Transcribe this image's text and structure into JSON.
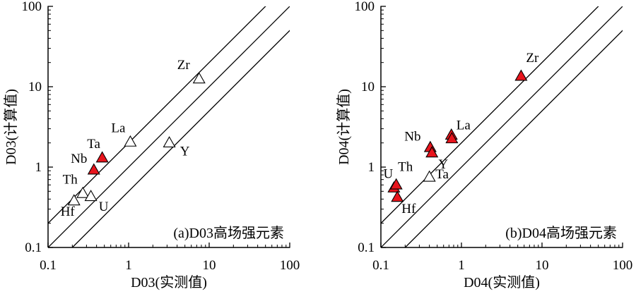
{
  "chart_data": [
    {
      "type": "scatter",
      "title": "(a)D03高场强元素",
      "xlabel": "D03(实测值)",
      "ylabel": "D03(计算值)",
      "xlim": [
        0.1,
        100
      ],
      "ylim": [
        0.1,
        100
      ],
      "xscale": "log",
      "yscale": "log",
      "tick_labels": [
        "0.1",
        "1",
        "10",
        "100"
      ],
      "reference_lines": [
        {
          "description": "y = 2x"
        },
        {
          "description": "y = x"
        },
        {
          "description": "y = 0.5x"
        }
      ],
      "points": [
        {
          "label": "Zr",
          "x": 7.5,
          "y": 12.5,
          "marker": "open",
          "label_dx": -22,
          "label_dy": -14
        },
        {
          "label": "La",
          "x": 1.05,
          "y": 2.05,
          "marker": "open",
          "label_dx": -17,
          "label_dy": -14
        },
        {
          "label": "Y",
          "x": 3.2,
          "y": 2.0,
          "marker": "open",
          "label_dx": 22,
          "label_dy": 18
        },
        {
          "label": "Ta",
          "x": 0.47,
          "y": 1.3,
          "marker": "filled",
          "label_dx": -12,
          "label_dy": -14
        },
        {
          "label": "Nb",
          "x": 0.37,
          "y": 0.92,
          "marker": "filled",
          "label_dx": -21,
          "label_dy": -10
        },
        {
          "label": "Th",
          "x": 0.27,
          "y": 0.47,
          "marker": "open",
          "label_dx": -18,
          "label_dy": -14
        },
        {
          "label": "U",
          "x": 0.34,
          "y": 0.43,
          "marker": "open",
          "label_dx": 18,
          "label_dy": 20
        },
        {
          "label": "Hf",
          "x": 0.21,
          "y": 0.38,
          "marker": "open",
          "label_dx": -9,
          "label_dy": 21
        }
      ]
    },
    {
      "type": "scatter",
      "title": "(b)D04高场强元素",
      "xlabel": "D04(实测值)",
      "ylabel": "D04(计算值)",
      "xlim": [
        0.1,
        100
      ],
      "ylim": [
        0.1,
        100
      ],
      "xscale": "log",
      "yscale": "log",
      "tick_labels": [
        "0.1",
        "1",
        "10",
        "100"
      ],
      "reference_lines": [
        {
          "description": "y = 2x"
        },
        {
          "description": "y = x"
        },
        {
          "description": "y = 0.5x"
        }
      ],
      "points": [
        {
          "label": "Zr",
          "x": 5.5,
          "y": 13.5,
          "marker": "filled",
          "label_dx": 16,
          "label_dy": -20
        },
        {
          "label": "La",
          "x": 0.75,
          "y": 2.5,
          "marker": "filled",
          "label_dx": 17,
          "label_dy": -8
        },
        {
          "label": "La",
          "x": 0.76,
          "y": 2.25,
          "marker": "filled",
          "label_dx": 0,
          "label_dy": 0,
          "label_hidden": true
        },
        {
          "label": "Nb",
          "x": 0.41,
          "y": 1.75,
          "marker": "filled",
          "label_dx": -25,
          "label_dy": -10
        },
        {
          "label": "Y",
          "x": 0.43,
          "y": 1.5,
          "marker": "filled",
          "label_dx": 16,
          "label_dy": 22
        },
        {
          "label": "Ta",
          "x": 0.4,
          "y": 0.75,
          "marker": "open",
          "label_dx": 18,
          "label_dy": 2
        },
        {
          "label": "U",
          "x": 0.145,
          "y": 0.55,
          "marker": "filled",
          "label_dx": -8,
          "label_dy": -14
        },
        {
          "label": "Th",
          "x": 0.155,
          "y": 0.6,
          "marker": "filled",
          "label_dx": 13,
          "label_dy": -20
        },
        {
          "label": "Hf",
          "x": 0.16,
          "y": 0.42,
          "marker": "filled",
          "label_dx": 16,
          "label_dy": 22
        }
      ]
    }
  ],
  "colors": {
    "filled_marker": "#e8141c",
    "axis": "#000000"
  }
}
